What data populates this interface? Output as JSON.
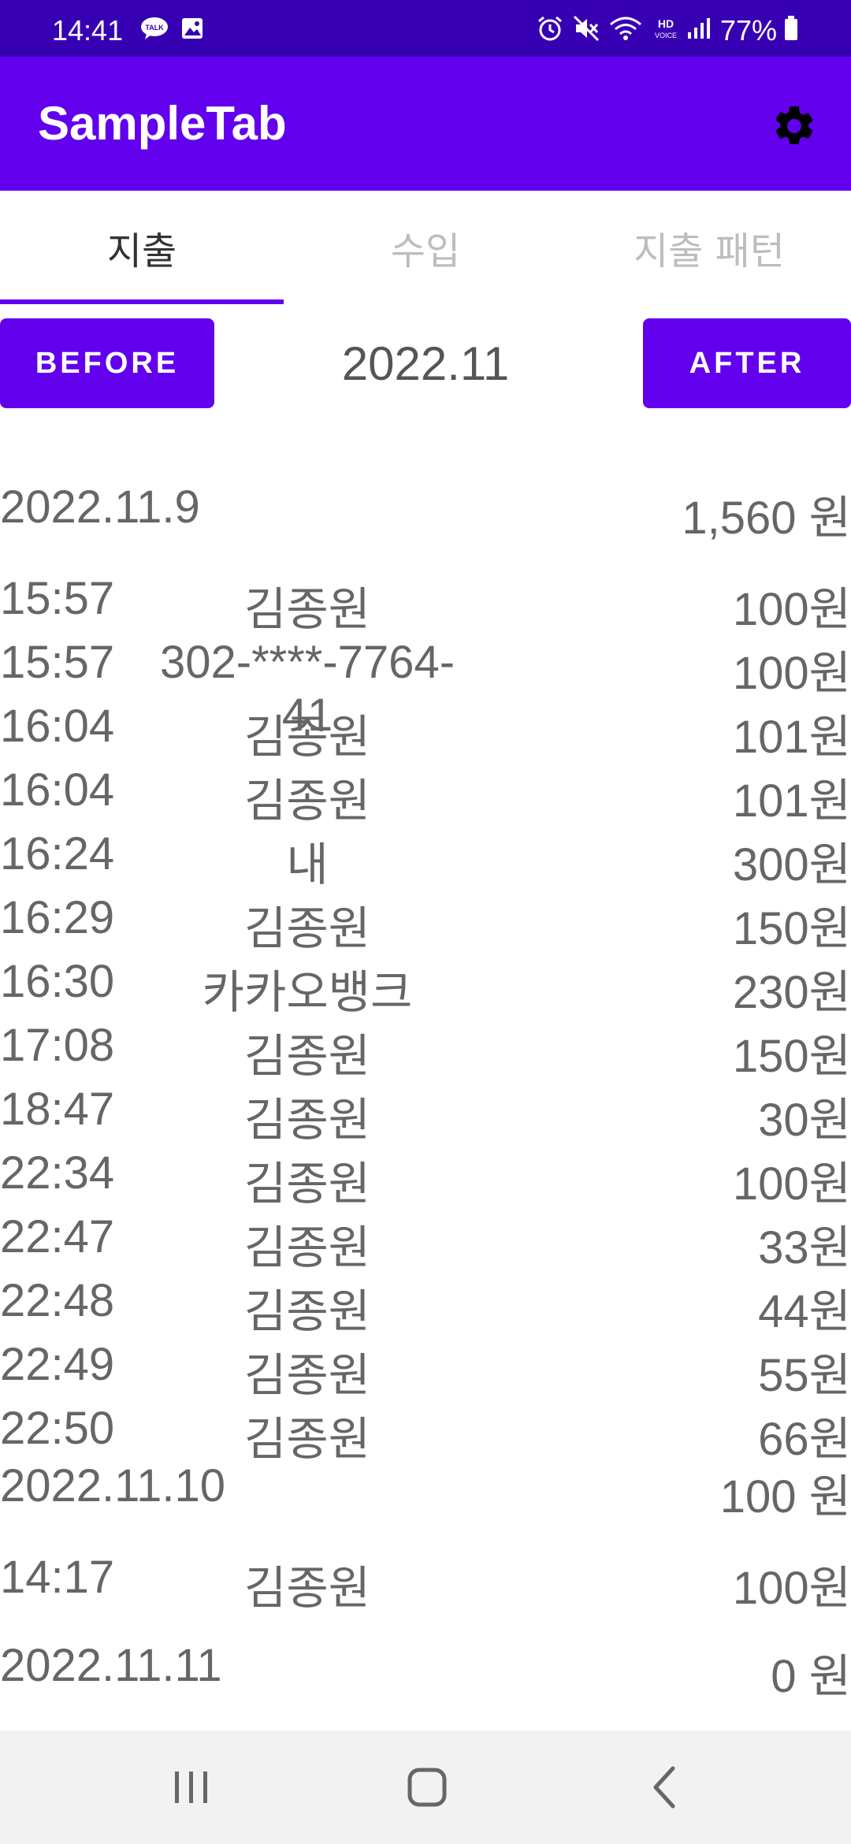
{
  "status_bar": {
    "time": "14:41",
    "battery": "77%",
    "icons": [
      "talk-icon",
      "image-icon",
      "alarm-icon",
      "mute-icon",
      "wifi-icon",
      "hd-voice-icon",
      "signal-icon",
      "battery-icon"
    ]
  },
  "app_bar": {
    "title": "SampleTab",
    "settings_icon": "gear-icon"
  },
  "tabs": [
    {
      "label": "지출",
      "active": true
    },
    {
      "label": "수입",
      "active": false
    },
    {
      "label": "지출 패턴",
      "active": false
    }
  ],
  "month_nav": {
    "before_label": "BEFORE",
    "month": "2022.11",
    "after_label": "AFTER"
  },
  "days": [
    {
      "date": "2022.11.9",
      "total": "1,560 원",
      "transactions": [
        {
          "time": "15:57",
          "name": "김종원",
          "amount": "100원"
        },
        {
          "time": "15:57",
          "name": "302-****-7764-41",
          "amount": "100원"
        },
        {
          "time": "16:04",
          "name": "김종원",
          "amount": "101원"
        },
        {
          "time": "16:04",
          "name": "김종원",
          "amount": "101원"
        },
        {
          "time": "16:24",
          "name": "내",
          "amount": "300원"
        },
        {
          "time": "16:29",
          "name": "김종원",
          "amount": "150원"
        },
        {
          "time": "16:30",
          "name": "카카오뱅크",
          "amount": "230원"
        },
        {
          "time": "17:08",
          "name": "김종원",
          "amount": "150원"
        },
        {
          "time": "18:47",
          "name": "김종원",
          "amount": "30원"
        },
        {
          "time": "22:34",
          "name": "김종원",
          "amount": "100원"
        },
        {
          "time": "22:47",
          "name": "김종원",
          "amount": "33원"
        },
        {
          "time": "22:48",
          "name": "김종원",
          "amount": "44원"
        },
        {
          "time": "22:49",
          "name": "김종원",
          "amount": "55원"
        },
        {
          "time": "22:50",
          "name": "김종원",
          "amount": "66원"
        }
      ]
    },
    {
      "date": "2022.11.10",
      "total": "100 원",
      "transactions": [
        {
          "time": "14:17",
          "name": "김종원",
          "amount": "100원"
        }
      ]
    },
    {
      "date": "2022.11.11",
      "total": "0 원",
      "transactions": []
    }
  ],
  "bottom_nav": {
    "icons": [
      "recent-apps-icon",
      "home-icon",
      "back-icon"
    ]
  },
  "colors": {
    "status_bar": "#3700b3",
    "primary": "#6200ee",
    "text_secondary": "#666666",
    "tab_inactive": "#bdbdbd"
  }
}
